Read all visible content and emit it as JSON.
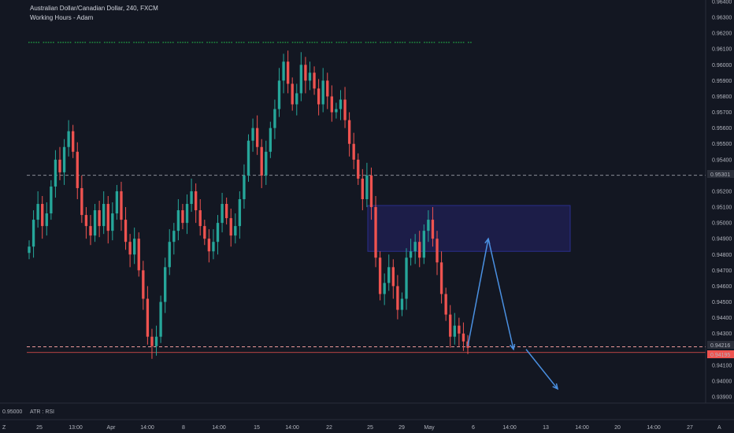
{
  "header": {
    "symbol_title": "Australian Dollar/Canadian Dollar, 240, FXCM",
    "indicator_title": "Working Hours - Adam"
  },
  "sub_pane": {
    "label": "ATR : RSI",
    "value": "0.95000"
  },
  "buttons": {
    "zoom_label": "Z",
    "auto_label": "A"
  },
  "price_badges": {
    "h_line_1": "0.95301",
    "current_a": "0.94216",
    "current_b": "0.94195"
  },
  "colors": {
    "background": "#131722",
    "up": "#26a69a",
    "down": "#ef5350",
    "zone_fill": "#1e1f4f",
    "zone_border": "#2a2e8c",
    "arrow": "#4a90e2",
    "dots": "#1e8a3f",
    "current_badge": "#ef5350"
  },
  "chart_data": {
    "type": "candlestick",
    "title": "Australian Dollar/Canadian Dollar, 240, FXCM",
    "y_axis": {
      "ticks": [
        "0.96400",
        "0.96300",
        "0.96200",
        "0.96100",
        "0.96000",
        "0.95900",
        "0.95800",
        "0.95700",
        "0.95600",
        "0.95500",
        "0.95400",
        "0.95200",
        "0.95100",
        "0.95000",
        "0.94900",
        "0.94800",
        "0.94700",
        "0.94600",
        "0.94500",
        "0.94400",
        "0.94300",
        "0.94100",
        "0.94000",
        "0.93900"
      ],
      "range": [
        0.9388,
        0.9641
      ]
    },
    "x_axis": {
      "ticks": [
        "25",
        "13:00",
        "Apr",
        "14:00",
        "8",
        "14:00",
        "15",
        "14:00",
        "22",
        "25",
        "29",
        "May",
        "6",
        "14:00",
        "13",
        "14:00",
        "20",
        "14:00",
        "27"
      ]
    },
    "series_closes": [
      0.9485,
      0.9502,
      0.9512,
      0.9498,
      0.9506,
      0.9523,
      0.954,
      0.9532,
      0.9548,
      0.9558,
      0.9545,
      0.9522,
      0.9505,
      0.9498,
      0.9492,
      0.9508,
      0.9498,
      0.9512,
      0.9495,
      0.9506,
      0.952,
      0.9502,
      0.9488,
      0.948,
      0.949,
      0.947,
      0.9452,
      0.9428,
      0.9422,
      0.9428,
      0.945,
      0.9472,
      0.9488,
      0.9495,
      0.9508,
      0.95,
      0.9512,
      0.952,
      0.9508,
      0.9498,
      0.949,
      0.9482,
      0.9488,
      0.95,
      0.9512,
      0.9503,
      0.9492,
      0.9498,
      0.9515,
      0.953,
      0.9552,
      0.956,
      0.9548,
      0.953,
      0.9545,
      0.956,
      0.9572,
      0.959,
      0.9602,
      0.9588,
      0.9575,
      0.9582,
      0.96,
      0.959,
      0.9595,
      0.9585,
      0.9575,
      0.959,
      0.958,
      0.957,
      0.9572,
      0.9578,
      0.9565,
      0.955,
      0.954,
      0.9528,
      0.9515,
      0.953,
      0.951,
      0.9478,
      0.9455,
      0.9462,
      0.9472,
      0.946,
      0.9445,
      0.9452,
      0.9478,
      0.9482,
      0.9488,
      0.9478,
      0.9495,
      0.9502,
      0.949,
      0.9475,
      0.9455,
      0.9442,
      0.9428,
      0.9435,
      0.943,
      0.9425,
      0.9421
    ],
    "horizontal_lines": [
      0.95301,
      0.94216
    ],
    "zone": {
      "from_price": 0.9511,
      "to_price": 0.9482
    },
    "projection_path": [
      0.9422,
      0.949,
      0.942,
      0.942,
      0.9395
    ]
  }
}
